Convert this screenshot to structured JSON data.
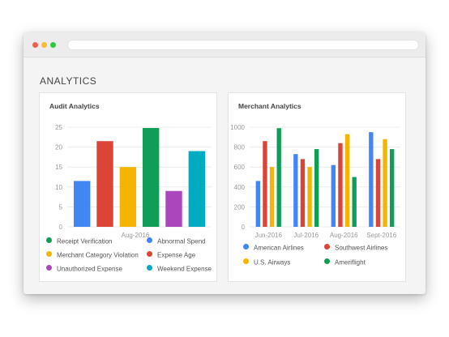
{
  "page": {
    "section_title": "ANALYTICS"
  },
  "colors": {
    "close": "#f25f57",
    "minimize": "#f8bd2e",
    "maximize": "#2bc840",
    "blue": "#4285f4",
    "red": "#db4437",
    "yellow": "#f4b400",
    "green": "#0f9d58",
    "purple": "#ab47bc",
    "teal": "#00acc1"
  },
  "audit": {
    "title": "Audit Analytics",
    "legend": [
      {
        "label": "Receipt Verification",
        "color": "#0f9d58"
      },
      {
        "label": "Abnormal Spend",
        "color": "#4285f4"
      },
      {
        "label": "Merchant Category Violation",
        "color": "#f4b400"
      },
      {
        "label": "Expense Age",
        "color": "#db4437"
      },
      {
        "label": "Unauthorized Expense",
        "color": "#ab47bc"
      },
      {
        "label": "Weekend Expense",
        "color": "#00acc1"
      }
    ]
  },
  "merchant": {
    "title": "Merchant Analytics",
    "legend": [
      {
        "label": "American Airlines",
        "color": "#4285f4"
      },
      {
        "label": "Southwest Airlines",
        "color": "#db4437"
      },
      {
        "label": "U.S. Airways",
        "color": "#f4b400"
      },
      {
        "label": "Ameriflight",
        "color": "#0f9d58"
      }
    ]
  },
  "chart_data": [
    {
      "type": "bar",
      "title": "Audit Analytics",
      "categories": [
        "Aug-2016"
      ],
      "series": [
        {
          "name": "Abnormal Spend",
          "values": [
            11.5
          ],
          "color": "#4285f4"
        },
        {
          "name": "Expense Age",
          "values": [
            21.5
          ],
          "color": "#db4437"
        },
        {
          "name": "Merchant Category Violation",
          "values": [
            15
          ],
          "color": "#f4b400"
        },
        {
          "name": "Receipt Verification",
          "values": [
            24.8
          ],
          "color": "#0f9d58"
        },
        {
          "name": "Unauthorized Expense",
          "values": [
            9
          ],
          "color": "#ab47bc"
        },
        {
          "name": "Weekend Expense",
          "values": [
            19
          ],
          "color": "#00acc1"
        }
      ],
      "yticks": [
        "0",
        "5",
        "10",
        "15",
        "20",
        "25"
      ],
      "ylim": [
        0,
        25
      ],
      "grid": true,
      "legend": "bottom"
    },
    {
      "type": "bar",
      "title": "Merchant Analytics",
      "categories": [
        "Jun-2016",
        "Jul-2016",
        "Aug-2016",
        "Sept-2016"
      ],
      "series": [
        {
          "name": "American Airlines",
          "values": [
            460,
            730,
            620,
            950
          ],
          "color": "#4285f4"
        },
        {
          "name": "Southwest Airlines",
          "values": [
            860,
            680,
            840,
            680
          ],
          "color": "#db4437"
        },
        {
          "name": "U.S. Airways",
          "values": [
            600,
            600,
            930,
            880
          ],
          "color": "#f4b400"
        },
        {
          "name": "Ameriflight",
          "values": [
            990,
            780,
            500,
            780
          ],
          "color": "#0f9d58"
        }
      ],
      "yticks": [
        "0",
        "200",
        "400",
        "600",
        "800",
        "1000"
      ],
      "ylim": [
        0,
        1000
      ],
      "grid": true,
      "legend": "bottom"
    }
  ]
}
